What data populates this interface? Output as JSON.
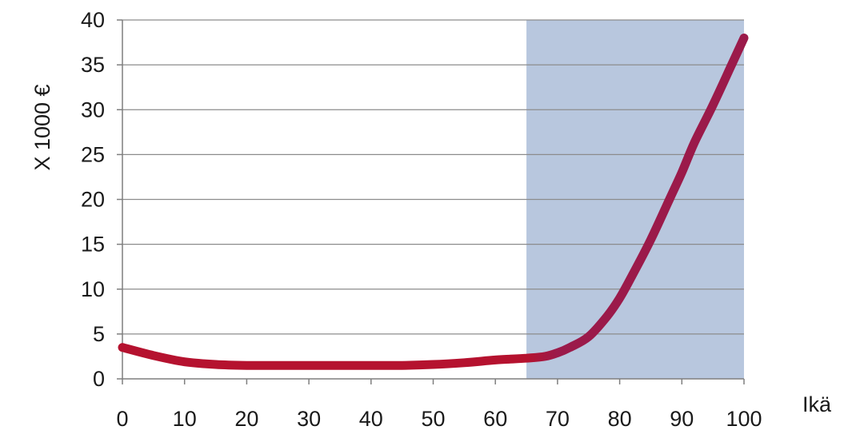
{
  "colors": {
    "background": "#ffffff",
    "shaded_region": "#b8c7de",
    "line_young": "#b5122f",
    "line_old": "#9b1a4a",
    "gridline": "#8c8c8c",
    "axis": "#7f7f7f",
    "text": "#1a1a1a"
  },
  "chart_data": {
    "type": "line",
    "title": "",
    "xlabel": "Ikä",
    "ylabel": "X 1000 €",
    "xlim": [
      0,
      100
    ],
    "ylim": [
      0,
      40
    ],
    "x_ticks": [
      0,
      10,
      20,
      30,
      40,
      50,
      60,
      70,
      80,
      90,
      100
    ],
    "y_ticks": [
      0,
      5,
      10,
      15,
      20,
      25,
      30,
      35,
      40
    ],
    "grid": "horizontal",
    "legend": "none",
    "shaded_region": {
      "x_from": 65,
      "x_to": 100
    },
    "series": [
      {
        "x": [
          0,
          5,
          10,
          15,
          20,
          25,
          30,
          35,
          40,
          45,
          50,
          55,
          60,
          65,
          68,
          70,
          72,
          75,
          78,
          80,
          82,
          85,
          88,
          90,
          92,
          95,
          98,
          100
        ],
        "y": [
          3.5,
          2.6,
          1.9,
          1.6,
          1.5,
          1.5,
          1.5,
          1.5,
          1.5,
          1.5,
          1.6,
          1.8,
          2.1,
          2.3,
          2.5,
          2.9,
          3.5,
          4.7,
          7.0,
          9.0,
          11.5,
          15.5,
          20.0,
          23.0,
          26.3,
          30.5,
          35.0,
          38.0
        ]
      }
    ]
  }
}
